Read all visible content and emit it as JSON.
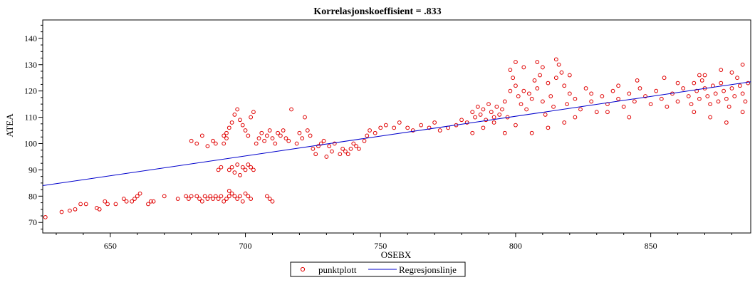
{
  "chart_data": {
    "type": "scatter",
    "title": "Korrelasjonskoeffisient =  .833",
    "xlabel": "OSEBX",
    "ylabel": "ATEA",
    "xlim": [
      625,
      887
    ],
    "ylim": [
      66,
      147
    ],
    "x_ticks": [
      650,
      700,
      750,
      800,
      850
    ],
    "y_ticks": [
      70,
      80,
      90,
      100,
      110,
      120,
      130,
      140
    ],
    "grid": false,
    "legend_position": "bottom-center",
    "colors": {
      "points": "#e00000",
      "line": "#0000cc",
      "axes": "#000000"
    },
    "series": [
      {
        "name": "punktplott",
        "kind": "scatter",
        "marker": "hollow-circle",
        "points": [
          [
            626,
            72
          ],
          [
            632,
            74
          ],
          [
            635,
            74.5
          ],
          [
            637,
            75
          ],
          [
            639,
            77
          ],
          [
            641,
            77
          ],
          [
            645,
            75.5
          ],
          [
            646,
            75
          ],
          [
            648,
            78
          ],
          [
            649,
            77
          ],
          [
            652,
            77
          ],
          [
            655,
            79
          ],
          [
            656,
            78
          ],
          [
            658,
            78
          ],
          [
            659,
            79
          ],
          [
            660,
            80
          ],
          [
            661,
            81
          ],
          [
            664,
            77
          ],
          [
            665,
            78
          ],
          [
            666,
            78
          ],
          [
            670,
            80
          ],
          [
            675,
            79
          ],
          [
            678,
            80
          ],
          [
            679,
            79
          ],
          [
            680,
            80
          ],
          [
            682,
            80
          ],
          [
            683,
            79
          ],
          [
            684,
            78
          ],
          [
            685,
            80
          ],
          [
            686,
            79
          ],
          [
            687,
            80
          ],
          [
            688,
            79
          ],
          [
            689,
            80
          ],
          [
            690,
            79
          ],
          [
            691,
            80
          ],
          [
            692,
            78
          ],
          [
            693,
            79
          ],
          [
            694,
            80
          ],
          [
            695,
            81
          ],
          [
            696,
            80
          ],
          [
            697,
            79
          ],
          [
            698,
            80
          ],
          [
            699,
            78
          ],
          [
            700,
            81
          ],
          [
            701,
            80
          ],
          [
            702,
            79
          ],
          [
            708,
            80
          ],
          [
            709,
            79
          ],
          [
            710,
            78
          ],
          [
            694,
            82
          ],
          [
            680,
            101
          ],
          [
            682,
            100
          ],
          [
            684,
            103
          ],
          [
            686,
            99
          ],
          [
            688,
            101
          ],
          [
            689,
            100
          ],
          [
            690,
            90
          ],
          [
            691,
            91
          ],
          [
            692,
            100
          ],
          [
            693,
            102
          ],
          [
            694,
            90
          ],
          [
            695,
            91
          ],
          [
            696,
            89
          ],
          [
            697,
            92
          ],
          [
            698,
            88
          ],
          [
            699,
            91
          ],
          [
            700,
            90
          ],
          [
            701,
            92
          ],
          [
            702,
            91
          ],
          [
            703,
            90
          ],
          [
            692,
            103
          ],
          [
            693,
            104
          ],
          [
            694,
            106
          ],
          [
            695,
            108
          ],
          [
            696,
            111
          ],
          [
            697,
            113
          ],
          [
            698,
            109
          ],
          [
            699,
            107
          ],
          [
            700,
            105
          ],
          [
            701,
            103
          ],
          [
            702,
            110
          ],
          [
            703,
            112
          ],
          [
            704,
            100
          ],
          [
            705,
            102
          ],
          [
            706,
            104
          ],
          [
            707,
            101
          ],
          [
            708,
            103
          ],
          [
            709,
            105
          ],
          [
            710,
            102
          ],
          [
            711,
            100
          ],
          [
            712,
            104
          ],
          [
            713,
            103
          ],
          [
            714,
            105
          ],
          [
            715,
            102
          ],
          [
            716,
            101
          ],
          [
            717,
            113
          ],
          [
            719,
            100
          ],
          [
            720,
            104
          ],
          [
            721,
            102
          ],
          [
            722,
            110
          ],
          [
            723,
            105
          ],
          [
            724,
            103
          ],
          [
            725,
            98
          ],
          [
            726,
            96
          ],
          [
            727,
            99
          ],
          [
            728,
            100
          ],
          [
            729,
            101
          ],
          [
            730,
            95
          ],
          [
            731,
            99
          ],
          [
            732,
            97
          ],
          [
            733,
            100
          ],
          [
            735,
            96
          ],
          [
            736,
            98
          ],
          [
            737,
            97
          ],
          [
            738,
            96
          ],
          [
            739,
            98
          ],
          [
            740,
            100
          ],
          [
            741,
            99
          ],
          [
            742,
            98
          ],
          [
            744,
            101
          ],
          [
            745,
            103
          ],
          [
            746,
            105
          ],
          [
            748,
            104
          ],
          [
            750,
            106
          ],
          [
            752,
            107
          ],
          [
            755,
            106
          ],
          [
            757,
            108
          ],
          [
            760,
            106
          ],
          [
            762,
            105
          ],
          [
            765,
            107
          ],
          [
            768,
            106
          ],
          [
            770,
            108
          ],
          [
            772,
            105
          ],
          [
            775,
            106
          ],
          [
            778,
            107
          ],
          [
            780,
            109
          ],
          [
            782,
            108
          ],
          [
            784,
            112
          ],
          [
            785,
            110
          ],
          [
            786,
            114
          ],
          [
            787,
            111
          ],
          [
            788,
            113
          ],
          [
            789,
            109
          ],
          [
            790,
            115
          ],
          [
            791,
            112
          ],
          [
            792,
            110
          ],
          [
            793,
            114
          ],
          [
            794,
            111
          ],
          [
            795,
            113
          ],
          [
            796,
            116
          ],
          [
            797,
            110
          ],
          [
            798,
            128
          ],
          [
            799,
            125
          ],
          [
            800,
            122
          ],
          [
            801,
            118
          ],
          [
            802,
            115
          ],
          [
            803,
            120
          ],
          [
            804,
            113
          ],
          [
            805,
            119
          ],
          [
            806,
            117
          ],
          [
            807,
            124
          ],
          [
            808,
            121
          ],
          [
            809,
            126
          ],
          [
            810,
            116
          ],
          [
            811,
            111
          ],
          [
            812,
            123
          ],
          [
            813,
            118
          ],
          [
            814,
            114
          ],
          [
            815,
            125
          ],
          [
            816,
            130
          ],
          [
            817,
            127
          ],
          [
            818,
            122
          ],
          [
            819,
            115
          ],
          [
            820,
            119
          ],
          [
            822,
            117
          ],
          [
            824,
            113
          ],
          [
            826,
            121
          ],
          [
            828,
            116
          ],
          [
            830,
            112
          ],
          [
            832,
            118
          ],
          [
            834,
            115
          ],
          [
            836,
            120
          ],
          [
            838,
            117
          ],
          [
            840,
            114
          ],
          [
            842,
            119
          ],
          [
            844,
            116
          ],
          [
            846,
            121
          ],
          [
            848,
            118
          ],
          [
            850,
            115
          ],
          [
            852,
            120
          ],
          [
            854,
            117
          ],
          [
            856,
            114
          ],
          [
            858,
            119
          ],
          [
            860,
            116
          ],
          [
            862,
            121
          ],
          [
            864,
            118
          ],
          [
            865,
            115
          ],
          [
            866,
            123
          ],
          [
            867,
            120
          ],
          [
            868,
            117
          ],
          [
            869,
            124
          ],
          [
            870,
            121
          ],
          [
            871,
            118
          ],
          [
            872,
            115
          ],
          [
            873,
            122
          ],
          [
            874,
            119
          ],
          [
            875,
            116
          ],
          [
            876,
            123
          ],
          [
            877,
            120
          ],
          [
            878,
            117
          ],
          [
            879,
            114
          ],
          [
            880,
            121
          ],
          [
            881,
            118
          ],
          [
            882,
            125
          ],
          [
            883,
            122
          ],
          [
            884,
            119
          ],
          [
            885,
            116
          ],
          [
            886,
            123
          ],
          [
            866,
            112
          ],
          [
            872,
            110
          ],
          [
            878,
            108
          ],
          [
            884,
            112
          ],
          [
            880,
            127
          ],
          [
            870,
            126
          ],
          [
            860,
            123
          ],
          [
            855,
            125
          ],
          [
            845,
            124
          ],
          [
            838,
            122
          ],
          [
            828,
            119
          ],
          [
            818,
            108
          ],
          [
            812,
            106
          ],
          [
            806,
            104
          ],
          [
            800,
            107
          ],
          [
            796,
            104
          ],
          [
            792,
            108
          ],
          [
            788,
            106
          ],
          [
            784,
            104
          ],
          [
            822,
            110
          ],
          [
            834,
            112
          ],
          [
            842,
            110
          ],
          [
            798,
            120
          ],
          [
            808,
            131
          ],
          [
            815,
            132
          ],
          [
            803,
            129
          ],
          [
            820,
            126
          ],
          [
            810,
            129
          ],
          [
            800,
            131
          ],
          [
            884,
            130
          ],
          [
            876,
            128
          ],
          [
            868,
            126
          ]
        ]
      },
      {
        "name": "Regresjonslinje",
        "kind": "line",
        "points": [
          [
            625,
            84
          ],
          [
            887,
            123.5
          ]
        ]
      }
    ]
  }
}
